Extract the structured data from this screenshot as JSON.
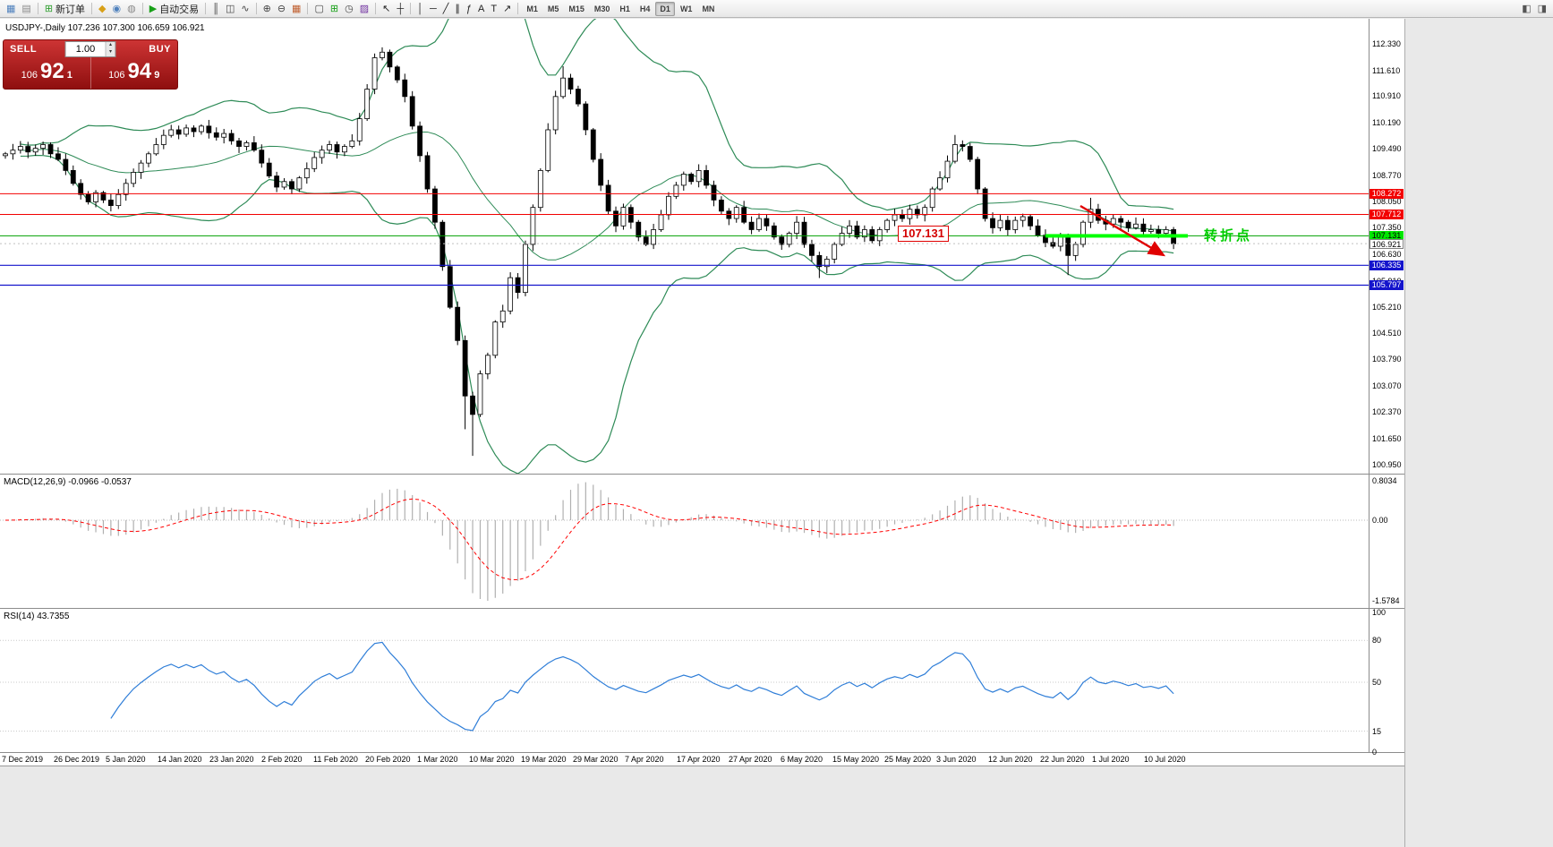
{
  "toolbar": {
    "icon_groups": [
      {
        "items": [
          {
            "name": "new-chart-icon",
            "glyph": "▦",
            "color": "#4f81bd"
          },
          {
            "name": "profiles-icon",
            "glyph": "▤",
            "color": "#8a8a8a"
          }
        ]
      },
      {
        "items": [
          {
            "name": "new-order-button",
            "glyph": "⊞",
            "color": "#2e9e2e",
            "label": "新订单"
          }
        ]
      },
      {
        "items": [
          {
            "name": "market-watch-icon",
            "glyph": "◆",
            "color": "#d8a018"
          },
          {
            "name": "data-window-icon",
            "glyph": "◉",
            "color": "#4f81bd"
          },
          {
            "name": "navigator-icon",
            "glyph": "◍",
            "color": "#8a8a8a"
          }
        ]
      },
      {
        "items": [
          {
            "name": "autotrade-button",
            "glyph": "▶",
            "color": "#18a018",
            "label": "自动交易"
          }
        ]
      },
      {
        "items": [
          {
            "name": "bar-chart-icon",
            "glyph": "║",
            "color": "#444444"
          },
          {
            "name": "candlestick-chart-icon",
            "glyph": "◫",
            "color": "#444444"
          },
          {
            "name": "line-chart-icon",
            "glyph": "∿",
            "color": "#444444"
          }
        ]
      },
      {
        "items": [
          {
            "name": "zoom-in-icon",
            "glyph": "⊕",
            "color": "#444444"
          },
          {
            "name": "zoom-out-icon",
            "glyph": "⊖",
            "color": "#444444"
          },
          {
            "name": "tile-windows-icon",
            "glyph": "▦",
            "color": "#c06030"
          }
        ]
      },
      {
        "items": [
          {
            "name": "objects-list-icon",
            "glyph": "▢",
            "color": "#444444"
          },
          {
            "name": "indicators-icon",
            "glyph": "⊞",
            "color": "#18a018"
          },
          {
            "name": "periods-icon",
            "glyph": "◷",
            "color": "#444444"
          },
          {
            "name": "templates-icon",
            "glyph": "▨",
            "color": "#7030a0"
          }
        ]
      },
      {
        "items": [
          {
            "name": "cursor-icon",
            "glyph": "↖",
            "color": "#222222"
          },
          {
            "name": "crosshair-icon",
            "glyph": "┼",
            "color": "#222222"
          }
        ]
      },
      {
        "items": [
          {
            "name": "vertical-line-icon",
            "glyph": "│",
            "color": "#222222"
          },
          {
            "name": "horizontal-line-icon",
            "glyph": "─",
            "color": "#222222"
          },
          {
            "name": "trendline-icon",
            "glyph": "╱",
            "color": "#222222"
          },
          {
            "name": "channel-icon",
            "glyph": "∥",
            "color": "#222222"
          },
          {
            "name": "fibonacci-icon",
            "glyph": "ƒ",
            "color": "#222222"
          },
          {
            "name": "text-icon",
            "glyph": "A",
            "color": "#222222"
          },
          {
            "name": "label-icon",
            "glyph": "T",
            "color": "#222222"
          },
          {
            "name": "arrows-icon",
            "glyph": "↗",
            "color": "#222222"
          }
        ]
      }
    ],
    "timeframes": [
      {
        "label": "M1"
      },
      {
        "label": "M5"
      },
      {
        "label": "M15"
      },
      {
        "label": "M30"
      },
      {
        "label": "H1"
      },
      {
        "label": "H4"
      },
      {
        "label": "D1",
        "active": true
      },
      {
        "label": "W1"
      },
      {
        "label": "MN"
      }
    ],
    "right_icons": [
      {
        "name": "chart-shift-icon",
        "glyph": "◧",
        "color": "#555555"
      },
      {
        "name": "auto-scroll-icon",
        "glyph": "◨",
        "color": "#555555"
      }
    ]
  },
  "chart": {
    "symbol_info": "USDJPY-,Daily  107.236 107.300 106.659 106.921",
    "one_click": {
      "sell_label": "SELL",
      "buy_label": "BUY",
      "volume": "1.00",
      "sell_price": {
        "prefix": "106",
        "big": "92",
        "sup": "1"
      },
      "buy_price": {
        "prefix": "106",
        "big": "94",
        "sup": "9"
      }
    },
    "annotations": {
      "price_label": "107.131",
      "turning_point": "转折点"
    },
    "price_axis_labels": [
      "112.330",
      "111.610",
      "110.910",
      "110.190",
      "109.490",
      "108.770",
      "108.050",
      "107.350",
      "106.630",
      "105.910",
      "105.210",
      "104.510",
      "103.790",
      "103.070",
      "102.370",
      "101.650",
      "100.950"
    ],
    "axis_markers": [
      {
        "value": "108.272",
        "bg": "#f20000",
        "fg": "#ffffff"
      },
      {
        "value": "107.712",
        "bg": "#f20000",
        "fg": "#ffffff"
      },
      {
        "value": "107.131",
        "bg": "#00e600",
        "fg": "#000000"
      },
      {
        "value": "106.921",
        "bg": "#ffffff",
        "fg": "#000000",
        "border": "#808080"
      },
      {
        "value": "106.335",
        "bg": "#1414cc",
        "fg": "#ffffff"
      },
      {
        "value": "105.797",
        "bg": "#1414cc",
        "fg": "#ffffff"
      }
    ],
    "date_labels": [
      "7 Dec 2019",
      "26 Dec 2019",
      "5 Jan 2020",
      "14 Jan 2020",
      "23 Jan 2020",
      "2 Feb 2020",
      "11 Feb 2020",
      "20 Feb 2020",
      "1 Mar 2020",
      "10 Mar 2020",
      "19 Mar 2020",
      "29 Mar 2020",
      "7 Apr 2020",
      "17 Apr 2020",
      "27 Apr 2020",
      "6 May 2020",
      "15 May 2020",
      "25 May 2020",
      "3 Jun 2020",
      "12 Jun 2020",
      "22 Jun 2020",
      "1 Jul 2020",
      "10 Jul 2020"
    ]
  },
  "macd": {
    "title": "MACD(12,26,9) -0.0966 -0.0537",
    "axis": [
      "0.8034",
      "0.00",
      "-1.5784"
    ]
  },
  "rsi": {
    "title": "RSI(14) 43.7355",
    "axis": [
      "100",
      "80",
      "50",
      "15",
      "0"
    ],
    "levels": [
      80,
      50,
      15
    ]
  },
  "chart_data": {
    "type": "candlestick",
    "symbol": "USDJPY",
    "timeframe": "Daily",
    "first_open": 109.3,
    "default_wick": 0.14,
    "closes": [
      109.35,
      109.45,
      109.55,
      109.4,
      109.5,
      109.6,
      109.35,
      109.2,
      108.9,
      108.55,
      108.25,
      108.05,
      108.3,
      108.1,
      107.95,
      108.25,
      108.55,
      108.85,
      109.1,
      109.35,
      109.6,
      109.85,
      110.0,
      109.88,
      110.05,
      109.95,
      110.1,
      109.92,
      109.8,
      109.9,
      109.7,
      109.55,
      109.65,
      109.45,
      109.1,
      108.75,
      108.45,
      108.6,
      108.4,
      108.7,
      108.95,
      109.25,
      109.45,
      109.6,
      109.4,
      109.55,
      109.7,
      110.3,
      111.1,
      111.95,
      112.1,
      111.7,
      111.35,
      110.9,
      110.1,
      109.3,
      108.4,
      107.5,
      106.3,
      105.2,
      104.3,
      102.8,
      102.3,
      103.4,
      103.9,
      104.8,
      105.1,
      106.0,
      105.6,
      106.9,
      107.9,
      108.9,
      110.0,
      110.9,
      111.4,
      111.1,
      110.7,
      110.0,
      109.2,
      108.5,
      107.8,
      107.4,
      107.9,
      107.5,
      107.1,
      106.9,
      107.3,
      107.7,
      108.2,
      108.5,
      108.8,
      108.6,
      108.9,
      108.5,
      108.1,
      107.8,
      107.6,
      107.9,
      107.5,
      107.3,
      107.6,
      107.4,
      107.1,
      106.9,
      107.2,
      107.5,
      106.9,
      106.6,
      106.3,
      106.5,
      106.9,
      107.2,
      107.4,
      107.1,
      107.3,
      107.0,
      107.3,
      107.55,
      107.7,
      107.6,
      107.85,
      107.7,
      107.9,
      108.4,
      108.7,
      109.15,
      109.6,
      109.55,
      109.2,
      108.4,
      107.6,
      107.35,
      107.55,
      107.3,
      107.55,
      107.65,
      107.4,
      107.15,
      106.95,
      106.85,
      107.1,
      106.6,
      106.9,
      107.5,
      107.85,
      107.55,
      107.45,
      107.6,
      107.5,
      107.35,
      107.45,
      107.25,
      107.3,
      107.2,
      107.3,
      106.92
    ],
    "high_overrides": {
      "50": 112.23,
      "74": 111.72,
      "126": 109.86,
      "144": 108.16
    },
    "low_overrides": {
      "61": 101.9,
      "62": 101.18,
      "108": 105.99,
      "141": 106.07
    },
    "last_price": 106.921,
    "levels": {
      "red": [
        108.272,
        107.712
      ],
      "red_color": "#f20000",
      "green": 107.131,
      "green_color": "#00a000",
      "blue": [
        106.335,
        105.797
      ],
      "blue_color": "#1414cc"
    },
    "thick_segment_color": "#00ff00",
    "trend_arrow_color": "#e00000",
    "indicators": {
      "bollinger": {
        "period": 20,
        "deviation": 2,
        "color": "#2E8B57"
      },
      "macd": {
        "fast": 12,
        "slow": 26,
        "signal": 9,
        "histogram_color": "#b0b0b0",
        "signal_color": "#ff0000"
      },
      "rsi": {
        "period": 14,
        "color": "#2f7ed8"
      }
    }
  }
}
